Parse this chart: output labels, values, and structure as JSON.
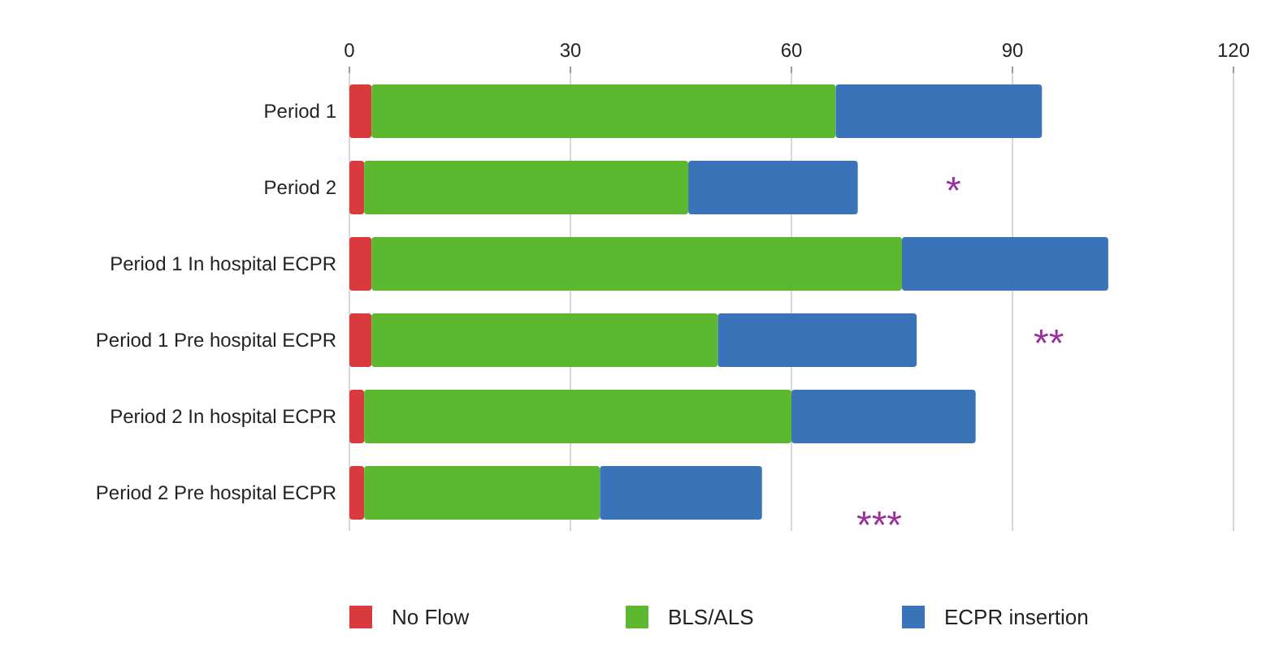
{
  "chart_data": {
    "type": "bar",
    "orientation": "horizontal",
    "stacked": true,
    "categories": [
      "Period 1",
      "Period 2",
      "Period 1 In hospital ECPR",
      "Period 1 Pre hospital ECPR",
      "Period 2 In hospital ECPR",
      "Period 2 Pre hospital ECPR"
    ],
    "series": [
      {
        "name": "No Flow",
        "color": "#d93a3e",
        "values": [
          3,
          2,
          3,
          3,
          2,
          2
        ]
      },
      {
        "name": "BLS/ALS",
        "color": "#5cb82e",
        "values": [
          63,
          44,
          72,
          47,
          58,
          32
        ]
      },
      {
        "name": "ECPR insertion",
        "color": "#3b73b9",
        "values": [
          28,
          23,
          28,
          27,
          25,
          22
        ]
      }
    ],
    "xlim": [
      0,
      120
    ],
    "xticks": [
      0,
      30,
      60,
      90,
      120
    ],
    "grid": "x",
    "legend": "bottom",
    "annotations": [
      "*",
      "**",
      "***"
    ]
  }
}
